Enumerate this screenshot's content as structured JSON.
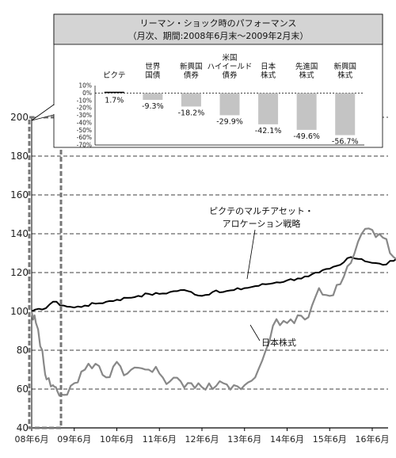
{
  "chart_data": [
    {
      "type": "line",
      "x_labels": [
        "08年6月",
        "09年6月",
        "10年6月",
        "11年6月",
        "12年6月",
        "13年6月",
        "14年6月",
        "15年6月",
        "16年6月"
      ],
      "ylim": [
        40,
        200
      ],
      "y_ticks": [
        40,
        60,
        80,
        100,
        120,
        140,
        160,
        180,
        200
      ],
      "grid": "horizontal dashed",
      "series": [
        {
          "name": "ピクテのマルチアセット・アロケーション戦略",
          "color": "#000000",
          "points": [
            [
              0,
              100
            ],
            [
              0.25,
              101
            ],
            [
              0.5,
              105
            ],
            [
              0.75,
              103
            ],
            [
              1.0,
              102
            ],
            [
              1.25,
              103
            ],
            [
              1.5,
              104
            ],
            [
              1.75,
              105
            ],
            [
              2.0,
              106
            ],
            [
              2.25,
              107
            ],
            [
              2.5,
              108
            ],
            [
              2.75,
              109
            ],
            [
              3.0,
              109
            ],
            [
              3.25,
              110
            ],
            [
              3.5,
              111
            ],
            [
              3.75,
              110
            ],
            [
              4.0,
              108
            ],
            [
              4.25,
              110
            ],
            [
              4.5,
              110
            ],
            [
              4.75,
              111
            ],
            [
              5.0,
              112
            ],
            [
              5.25,
              113
            ],
            [
              5.5,
              114
            ],
            [
              5.75,
              115
            ],
            [
              6.0,
              116
            ],
            [
              6.25,
              117
            ],
            [
              6.5,
              118
            ],
            [
              6.75,
              120
            ],
            [
              7.0,
              122
            ],
            [
              7.25,
              124
            ],
            [
              7.5,
              128
            ],
            [
              7.75,
              127
            ],
            [
              8.0,
              125
            ],
            [
              8.25,
              124
            ],
            [
              8.5,
              126
            ],
            [
              8.75,
              128
            ],
            [
              9.0,
              130
            ]
          ]
        },
        {
          "name": "日本株式",
          "color": "#888888",
          "points": [
            [
              0,
              100
            ],
            [
              0.1,
              94
            ],
            [
              0.25,
              80
            ],
            [
              0.35,
              65
            ],
            [
              0.5,
              62
            ],
            [
              0.6,
              59
            ],
            [
              0.75,
              57
            ],
            [
              1.0,
              63
            ],
            [
              1.25,
              70
            ],
            [
              1.5,
              73
            ],
            [
              1.75,
              66
            ],
            [
              2.0,
              74
            ],
            [
              2.25,
              68
            ],
            [
              2.5,
              71
            ],
            [
              2.75,
              70
            ],
            [
              3.0,
              68
            ],
            [
              3.25,
              64
            ],
            [
              3.5,
              64
            ],
            [
              3.75,
              63
            ],
            [
              4.0,
              61
            ],
            [
              4.25,
              60
            ],
            [
              4.5,
              63
            ],
            [
              4.75,
              62
            ],
            [
              5.0,
              62
            ],
            [
              5.25,
              66
            ],
            [
              5.5,
              80
            ],
            [
              5.75,
              96
            ],
            [
              6.0,
              94
            ],
            [
              6.25,
              98
            ],
            [
              6.5,
              97
            ],
            [
              6.75,
              112
            ],
            [
              7.0,
              108
            ],
            [
              7.25,
              114
            ],
            [
              7.5,
              125
            ],
            [
              7.75,
              140
            ],
            [
              8.0,
              142
            ],
            [
              8.25,
              138
            ],
            [
              8.5,
              128
            ],
            [
              8.75,
              122
            ],
            [
              9.0,
              120
            ]
          ]
        }
      ],
      "annotations": {
        "strategy": [
          "ピクテのマルチアセット・",
          "アロケーション戦略"
        ],
        "japan": "日本株式"
      }
    },
    {
      "type": "bar",
      "title": "リーマン・ショック時のパフォーマンス",
      "subtitle": "（月次、期間:2008年6月末〜2009年2月末）",
      "categories": [
        [
          "ピクテ"
        ],
        [
          "世界",
          "国債"
        ],
        [
          "新興国",
          "債券"
        ],
        [
          "米国",
          "ハイイールド",
          "債券"
        ],
        [
          "日本",
          "株式"
        ],
        [
          "先進国",
          "株式"
        ],
        [
          "新興国",
          "株式"
        ]
      ],
      "values": [
        1.7,
        -9.3,
        -18.2,
        -29.9,
        -42.1,
        -49.6,
        -56.7
      ],
      "value_labels": [
        "1.7%",
        "-9.3%",
        "-18.2%",
        "-29.9%",
        "-42.1%",
        "-49.6%",
        "-56.7%"
      ],
      "ylim": [
        -70,
        10
      ],
      "y_ticks": [
        "10%",
        "0%",
        "-10%",
        "-20%",
        "-30%",
        "-40%",
        "-50%",
        "-60%",
        "-70%"
      ],
      "y_tick_values": [
        10,
        0,
        -10,
        -20,
        -30,
        -40,
        -50,
        -60,
        -70
      ],
      "colors": {
        "first": "#000000",
        "others": "#c4c4c4"
      }
    }
  ]
}
